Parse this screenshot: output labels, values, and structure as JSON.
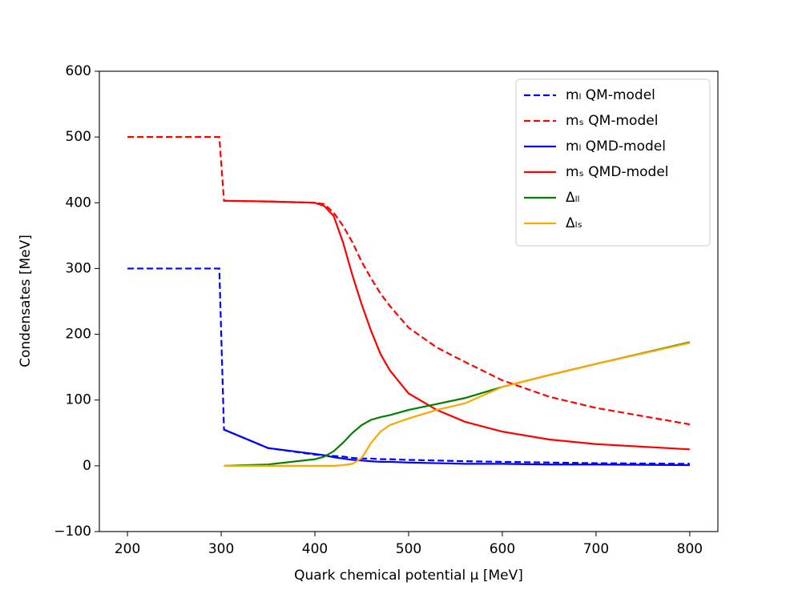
{
  "chart_data": {
    "type": "line",
    "xlabel": "Quark chemical potential μ [MeV]",
    "ylabel": "Condensates [MeV]",
    "x": [
      200,
      298,
      303,
      350,
      400,
      410,
      420,
      430,
      440,
      450,
      460,
      470,
      480,
      500,
      530,
      560,
      600,
      650,
      700,
      800
    ],
    "series": [
      {
        "name": "mₗ QM-model",
        "color": "#0000ff",
        "dashed": true,
        "values": [
          300,
          300,
          55,
          27,
          17,
          16,
          15,
          14,
          12,
          11,
          11,
          10,
          10,
          9,
          8,
          7,
          6,
          5,
          4,
          3
        ]
      },
      {
        "name": "mₛ QM-model",
        "color": "#ff0000",
        "dashed": true,
        "values": [
          500,
          500,
          403,
          402,
          400,
          398,
          385,
          365,
          340,
          310,
          285,
          262,
          243,
          210,
          180,
          158,
          130,
          105,
          88,
          63
        ]
      },
      {
        "name": "mₗ QMD-model",
        "color": "#0000ff",
        "dashed": false,
        "values": [
          null,
          null,
          55,
          27,
          18,
          16,
          13,
          11,
          9,
          8,
          7,
          6,
          6,
          5,
          4,
          3,
          3,
          2,
          2,
          1
        ]
      },
      {
        "name": "mₛ QMD-model",
        "color": "#ff0000",
        "dashed": false,
        "values": [
          null,
          null,
          403,
          402,
          400,
          395,
          380,
          340,
          290,
          245,
          205,
          170,
          145,
          110,
          85,
          67,
          52,
          40,
          33,
          25
        ]
      },
      {
        "name": "Δₗₗ",
        "color": "#008000",
        "dashed": false,
        "values": [
          null,
          null,
          0,
          2,
          10,
          14,
          22,
          35,
          50,
          62,
          70,
          74,
          77,
          85,
          94,
          103,
          120,
          138,
          155,
          188
        ]
      },
      {
        "name": "Δₗₛ",
        "color": "#ffa500",
        "dashed": false,
        "values": [
          null,
          null,
          0,
          0,
          0,
          0,
          0,
          1,
          3,
          12,
          35,
          52,
          62,
          72,
          85,
          95,
          120,
          138,
          155,
          187
        ]
      }
    ],
    "xlim": [
      170,
      830
    ],
    "xticks": [
      200,
      300,
      400,
      500,
      600,
      700,
      800
    ],
    "ylim": [
      -100,
      600
    ],
    "yticks": [
      {
        "value": -100,
        "label": "−100"
      },
      0,
      100,
      200,
      300,
      400,
      500,
      600
    ],
    "grid": false,
    "legend": "upper right"
  }
}
